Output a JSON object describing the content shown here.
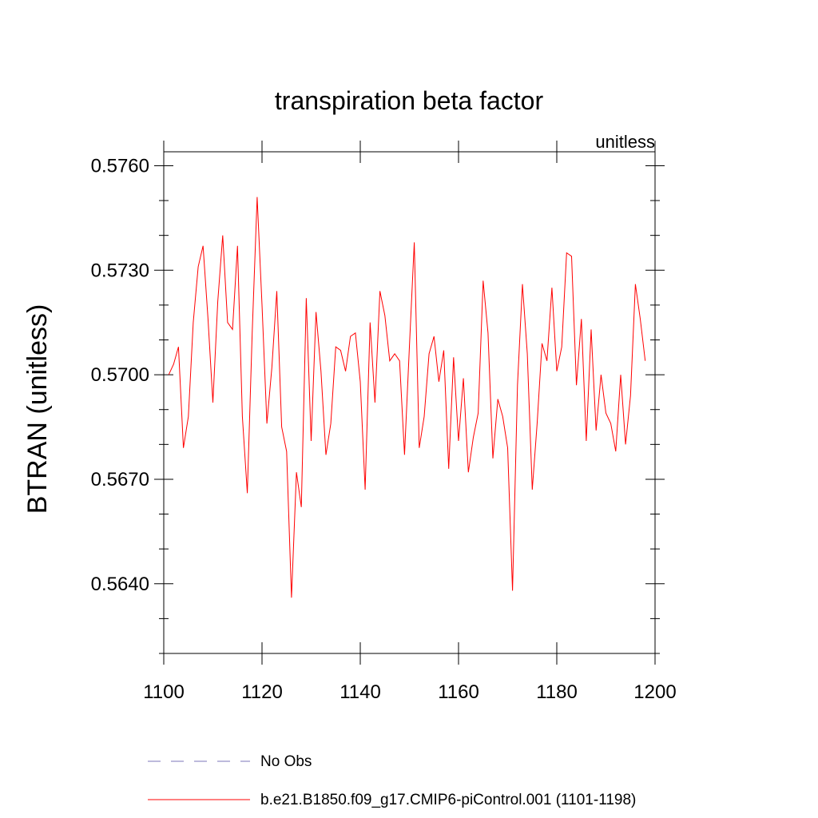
{
  "chart_data": {
    "type": "line",
    "title": "transpiration beta factor",
    "units_label": "unitless",
    "xlabel": "",
    "ylabel": "BTRAN  (unitless)",
    "xlim": [
      1100,
      1200
    ],
    "ylim": [
      0.562,
      0.5764
    ],
    "x_ticks": [
      1100,
      1120,
      1140,
      1160,
      1180,
      1200
    ],
    "x_tick_labels": [
      "1100",
      "1120",
      "1140",
      "1160",
      "1180",
      "1200"
    ],
    "y_ticks": [
      0.564,
      0.567,
      0.57,
      0.573,
      0.576
    ],
    "y_tick_labels": [
      "0.5640",
      "0.5670",
      "0.5700",
      "0.5730",
      "0.5760"
    ],
    "grid": false,
    "legend_position": "bottom",
    "series": [
      {
        "name": "No Obs",
        "color": "#7b74b8",
        "dashed": true,
        "x": [],
        "values": []
      },
      {
        "name": "b.e21.B1850.f09_g17.CMIP6-piControl.001 (1101-1198)",
        "color": "#ff0000",
        "dashed": false,
        "x": [
          1101,
          1102,
          1103,
          1104,
          1105,
          1106,
          1107,
          1108,
          1109,
          1110,
          1111,
          1112,
          1113,
          1114,
          1115,
          1116,
          1117,
          1118,
          1119,
          1120,
          1121,
          1122,
          1123,
          1124,
          1125,
          1126,
          1127,
          1128,
          1129,
          1130,
          1131,
          1132,
          1133,
          1134,
          1135,
          1136,
          1137,
          1138,
          1139,
          1140,
          1141,
          1142,
          1143,
          1144,
          1145,
          1146,
          1147,
          1148,
          1149,
          1150,
          1151,
          1152,
          1153,
          1154,
          1155,
          1156,
          1157,
          1158,
          1159,
          1160,
          1161,
          1162,
          1163,
          1164,
          1165,
          1166,
          1167,
          1168,
          1169,
          1170,
          1171,
          1172,
          1173,
          1174,
          1175,
          1176,
          1177,
          1178,
          1179,
          1180,
          1181,
          1182,
          1183,
          1184,
          1185,
          1186,
          1187,
          1188,
          1189,
          1190,
          1191,
          1192,
          1193,
          1194,
          1195,
          1196,
          1197,
          1198
        ],
        "values": [
          0.57,
          0.5703,
          0.5708,
          0.5679,
          0.5688,
          0.5715,
          0.5731,
          0.5737,
          0.5716,
          0.5692,
          0.5721,
          0.574,
          0.5715,
          0.5713,
          0.5737,
          0.5688,
          0.5666,
          0.5712,
          0.5751,
          0.572,
          0.5686,
          0.5702,
          0.5724,
          0.5685,
          0.5678,
          0.5636,
          0.5672,
          0.5662,
          0.5722,
          0.5681,
          0.5718,
          0.5701,
          0.5677,
          0.5686,
          0.5708,
          0.5707,
          0.5701,
          0.5711,
          0.5712,
          0.5698,
          0.5667,
          0.5715,
          0.5692,
          0.5724,
          0.5717,
          0.5704,
          0.5706,
          0.5704,
          0.5677,
          0.5708,
          0.5738,
          0.5679,
          0.5688,
          0.5706,
          0.5711,
          0.5698,
          0.5707,
          0.5673,
          0.5705,
          0.5681,
          0.5699,
          0.5672,
          0.5682,
          0.5689,
          0.5727,
          0.5712,
          0.5676,
          0.5693,
          0.5688,
          0.5679,
          0.5638,
          0.5697,
          0.5726,
          0.5706,
          0.5667,
          0.5686,
          0.5709,
          0.5704,
          0.5725,
          0.5701,
          0.5708,
          0.5735,
          0.5734,
          0.5697,
          0.5716,
          0.5681,
          0.5713,
          0.5684,
          0.57,
          0.5689,
          0.5686,
          0.5678,
          0.57,
          0.568,
          0.5694,
          0.5726,
          0.5716,
          0.5704
        ]
      }
    ]
  }
}
